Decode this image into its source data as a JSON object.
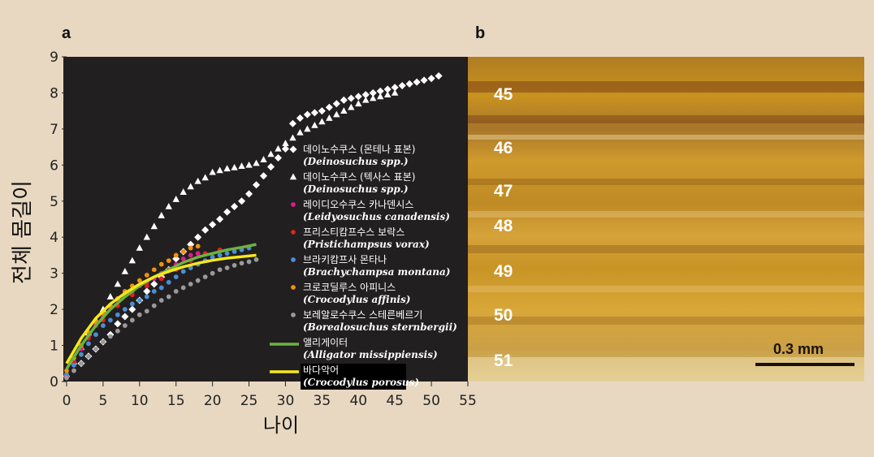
{
  "panel_a_label": "a",
  "panel_b_label": "b",
  "chart_data": {
    "type": "scatter",
    "xlabel": "나이",
    "ylabel": "전체 몸길이",
    "xlim": [
      0,
      55
    ],
    "ylim": [
      0,
      9
    ],
    "xticks": [
      0,
      5,
      10,
      15,
      20,
      25,
      30,
      35,
      40,
      45,
      50,
      55
    ],
    "yticks": [
      0,
      1,
      2,
      3,
      4,
      5,
      6,
      7,
      8,
      9
    ],
    "background": "#221f20",
    "legend_position": "center-right",
    "series": [
      {
        "name": "데이노수쿠스 (몬테나 표본)",
        "latin": "(Deinosuchus spp.)",
        "marker": "diamond",
        "color": "#ffffff",
        "x": [
          2,
          3,
          4,
          5,
          6,
          7,
          8,
          9,
          10,
          11,
          12,
          13,
          14,
          15,
          16,
          17,
          18,
          19,
          20,
          21,
          22,
          23,
          24,
          25,
          26,
          27,
          28,
          29,
          30,
          31,
          32,
          33,
          34,
          35,
          36,
          37,
          38,
          39,
          40,
          41,
          42,
          43,
          44,
          45,
          46,
          47,
          48,
          49,
          50,
          51
        ],
        "y": [
          0.5,
          0.7,
          0.9,
          1.1,
          1.3,
          1.6,
          1.8,
          2.0,
          2.25,
          2.5,
          2.7,
          2.9,
          3.1,
          3.4,
          3.6,
          3.8,
          4.0,
          4.2,
          4.35,
          4.5,
          4.7,
          4.85,
          5.0,
          5.2,
          5.45,
          5.7,
          5.95,
          6.2,
          6.45,
          7.15,
          7.3,
          7.4,
          7.45,
          7.5,
          7.6,
          7.7,
          7.8,
          7.85,
          7.9,
          7.95,
          8.0,
          8.05,
          8.1,
          8.15,
          8.2,
          8.25,
          8.3,
          8.35,
          8.4,
          8.47
        ]
      },
      {
        "name": "데이노수쿠스 (텍사스 표본)",
        "latin": "(Deinosuchus spp.)",
        "marker": "triangle",
        "color": "#ffffff",
        "x": [
          0,
          1,
          2,
          3,
          4,
          5,
          6,
          7,
          8,
          9,
          10,
          11,
          12,
          13,
          14,
          15,
          16,
          17,
          18,
          19,
          20,
          21,
          22,
          23,
          24,
          25,
          26,
          27,
          28,
          29,
          30,
          31,
          32,
          33,
          34,
          35,
          36,
          37,
          38,
          39,
          40,
          41,
          42,
          43,
          44,
          45
        ],
        "y": [
          0.2,
          0.55,
          0.95,
          1.35,
          1.7,
          2.0,
          2.35,
          2.7,
          3.05,
          3.35,
          3.7,
          4.0,
          4.3,
          4.6,
          4.85,
          5.05,
          5.25,
          5.4,
          5.55,
          5.65,
          5.8,
          5.85,
          5.9,
          5.93,
          5.97,
          6.0,
          6.05,
          6.15,
          6.3,
          6.45,
          6.6,
          6.75,
          6.9,
          7.0,
          7.1,
          7.2,
          7.3,
          7.4,
          7.5,
          7.6,
          7.7,
          7.8,
          7.85,
          7.9,
          7.95,
          8.0
        ]
      },
      {
        "name": "레이디오수쿠스 카나덴시스",
        "latin": "(Leidyosuchus canadensis)",
        "marker": "circle",
        "color": "#e0188c",
        "x": [
          0,
          1,
          2,
          3,
          4,
          5,
          6,
          7,
          8,
          9,
          10,
          11,
          12,
          13,
          14,
          15,
          16,
          17,
          18
        ],
        "y": [
          0.15,
          0.55,
          0.9,
          1.25,
          1.55,
          1.8,
          2.05,
          2.25,
          2.4,
          2.5,
          2.65,
          2.75,
          2.85,
          3.0,
          3.1,
          3.25,
          3.4,
          3.5,
          3.55
        ]
      },
      {
        "name": "프리스티캄프수스 보락스",
        "latin": "(Pristichampsus vorax)",
        "marker": "circle",
        "color": "#e02020",
        "x": [
          1,
          3,
          5,
          7,
          9,
          11,
          13,
          15,
          17,
          19,
          21
        ],
        "y": [
          0.5,
          1.2,
          1.7,
          2.1,
          2.4,
          2.65,
          2.85,
          3.1,
          3.35,
          3.55,
          3.65
        ]
      },
      {
        "name": "브라키캄프사 몬타나",
        "latin": "(Brachychampsa montana)",
        "marker": "circle",
        "color": "#4a8fd6",
        "x": [
          0,
          1,
          2,
          3,
          4,
          5,
          6,
          7,
          8,
          9,
          10,
          11,
          12,
          13,
          14,
          15,
          16,
          17,
          18,
          19,
          20,
          21,
          22,
          23,
          24,
          25
        ],
        "y": [
          0.2,
          0.45,
          0.75,
          1.05,
          1.3,
          1.55,
          1.7,
          1.85,
          2.0,
          2.15,
          2.25,
          2.35,
          2.5,
          2.6,
          2.75,
          2.9,
          3.05,
          3.15,
          3.25,
          3.35,
          3.45,
          3.5,
          3.55,
          3.6,
          3.65,
          3.7
        ]
      },
      {
        "name": "크로코딜루스 아피니스",
        "latin": "(Crocodylus affinis)",
        "marker": "circle",
        "color": "#f0900e",
        "x": [
          0,
          1,
          2,
          3,
          4,
          5,
          6,
          7,
          8,
          9,
          10,
          11,
          12,
          13,
          14,
          15,
          16,
          17,
          18
        ],
        "y": [
          0.3,
          0.65,
          1.0,
          1.35,
          1.65,
          1.9,
          2.1,
          2.3,
          2.5,
          2.65,
          2.8,
          2.95,
          3.1,
          3.25,
          3.35,
          3.5,
          3.6,
          3.7,
          3.75
        ]
      },
      {
        "name": "보레알로수쿠스 스테른베르기",
        "latin": "(Borealosuchus sternbergii)",
        "marker": "circle",
        "color": "#9a9a9a",
        "x": [
          0,
          1,
          2,
          3,
          4,
          5,
          6,
          7,
          8,
          9,
          10,
          11,
          12,
          13,
          14,
          15,
          16,
          17,
          18,
          19,
          20,
          21,
          22,
          23,
          24,
          25,
          26
        ],
        "y": [
          0.1,
          0.3,
          0.5,
          0.7,
          0.9,
          1.1,
          1.25,
          1.4,
          1.55,
          1.7,
          1.85,
          1.95,
          2.1,
          2.25,
          2.35,
          2.5,
          2.6,
          2.7,
          2.8,
          2.9,
          3.0,
          3.1,
          3.15,
          3.22,
          3.28,
          3.32,
          3.38
        ]
      },
      {
        "name": "앨리게이터",
        "latin": "(Alligator missippiensis)",
        "marker": "line",
        "color": "#6cb33e",
        "x": [
          0,
          2,
          4,
          6,
          8,
          10,
          12,
          14,
          16,
          18,
          20,
          22,
          24,
          26
        ],
        "y": [
          0.35,
          1.0,
          1.55,
          2.0,
          2.35,
          2.65,
          2.9,
          3.1,
          3.3,
          3.45,
          3.55,
          3.65,
          3.72,
          3.8
        ]
      },
      {
        "name": "바다악어",
        "latin": "(Crocodylus porosus)",
        "marker": "line",
        "color": "#f5e81c",
        "x": [
          0,
          2,
          4,
          6,
          8,
          10,
          12,
          14,
          16,
          18,
          20,
          22,
          24,
          26
        ],
        "y": [
          0.5,
          1.2,
          1.75,
          2.15,
          2.45,
          2.7,
          2.9,
          3.05,
          3.18,
          3.28,
          3.36,
          3.42,
          3.46,
          3.5
        ]
      }
    ]
  },
  "photo": {
    "ring_labels": [
      "45",
      "46",
      "47",
      "48",
      "49",
      "50",
      "51"
    ],
    "scale_text": "0.3 mm"
  }
}
